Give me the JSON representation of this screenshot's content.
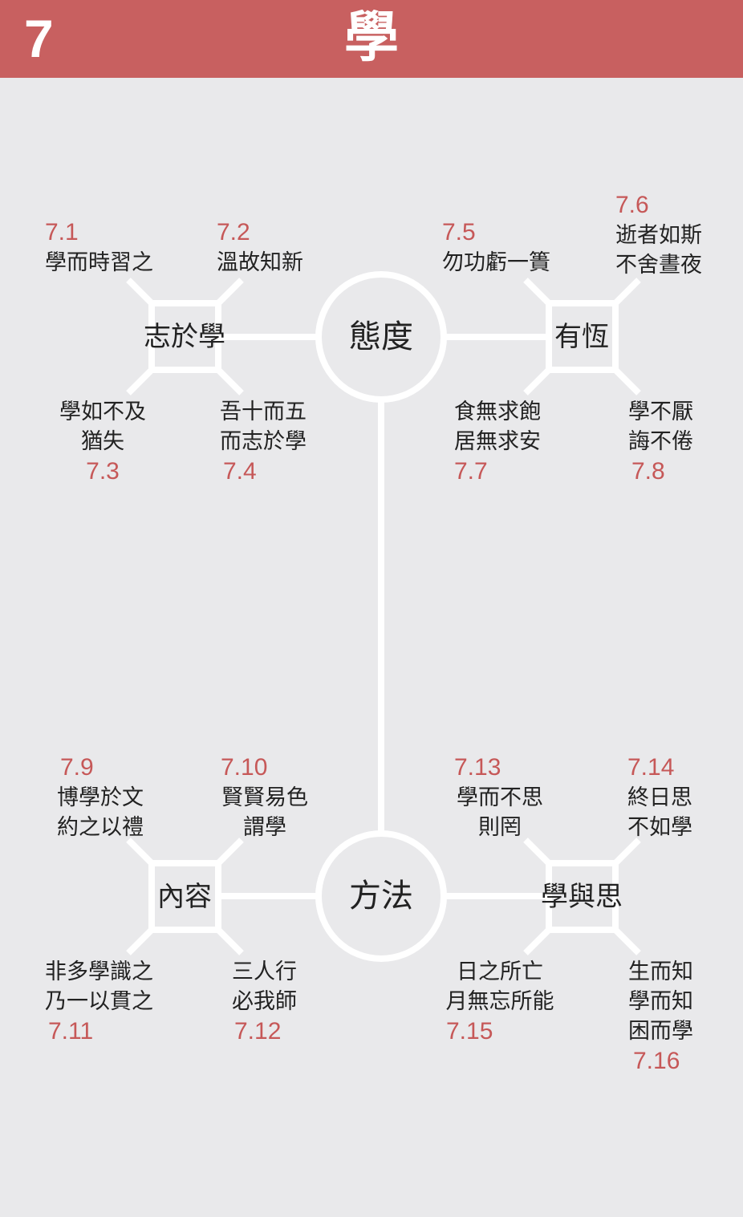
{
  "header": {
    "chapter_number": "7",
    "title": "學"
  },
  "colors": {
    "header": "#c86060",
    "accent": "#c65858",
    "line": "#ffffff",
    "background": "#e9e9eb"
  },
  "diagram": {
    "top_hub": "態度",
    "bottom_hub": "方法",
    "groups": {
      "zhi_yu_xue": {
        "label": "志於學",
        "items": [
          {
            "num": "7.1",
            "lines": [
              "學而時習之"
            ]
          },
          {
            "num": "7.2",
            "lines": [
              "溫故知新"
            ]
          },
          {
            "num": "7.3",
            "lines": [
              "學如不及",
              "猶失"
            ]
          },
          {
            "num": "7.4",
            "lines": [
              "吾十而五",
              "而志於學"
            ]
          }
        ]
      },
      "you_heng": {
        "label": "有恆",
        "items": [
          {
            "num": "7.5",
            "lines": [
              "勿功虧一簣"
            ]
          },
          {
            "num": "7.6",
            "lines": [
              "逝者如斯",
              "不舍晝夜"
            ]
          },
          {
            "num": "7.7",
            "lines": [
              "食無求飽",
              "居無求安"
            ]
          },
          {
            "num": "7.8",
            "lines": [
              "學不厭",
              "誨不倦"
            ]
          }
        ]
      },
      "nei_rong": {
        "label": "內容",
        "items": [
          {
            "num": "7.9",
            "lines": [
              "博學於文",
              "約之以禮"
            ]
          },
          {
            "num": "7.10",
            "lines": [
              "賢賢易色",
              "謂學"
            ]
          },
          {
            "num": "7.11",
            "lines": [
              "非多學識之",
              "乃一以貫之"
            ]
          },
          {
            "num": "7.12",
            "lines": [
              "三人行",
              "必我師"
            ]
          }
        ]
      },
      "xue_yu_si": {
        "label": "學與思",
        "items": [
          {
            "num": "7.13",
            "lines": [
              "學而不思",
              "則罔"
            ]
          },
          {
            "num": "7.14",
            "lines": [
              "終日思",
              "不如學"
            ]
          },
          {
            "num": "7.15",
            "lines": [
              "日之所亡",
              "月無忘所能"
            ]
          },
          {
            "num": "7.16",
            "lines": [
              "生而知",
              "學而知",
              "困而學"
            ]
          }
        ]
      }
    }
  }
}
